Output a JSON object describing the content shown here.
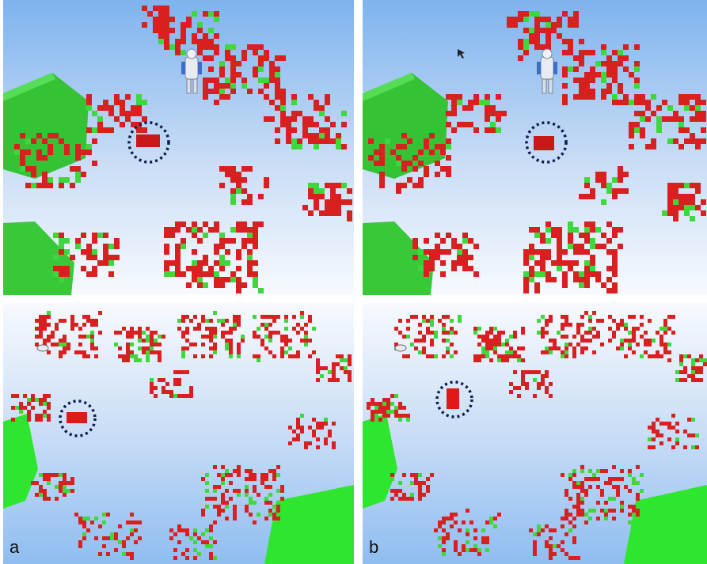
{
  "panels": {
    "a": {
      "label": "a"
    },
    "b": {
      "label": "b"
    }
  },
  "colors": {
    "occupied": "#d92020",
    "free": "#3ed83e",
    "sky_top": "#7fb4ef",
    "sky_bottom": "#f4f8fe",
    "highlight_ring": "#0f1a4a"
  },
  "icons": [
    "robot-icon",
    "cursor-icon",
    "highlight-circle-icon"
  ]
}
